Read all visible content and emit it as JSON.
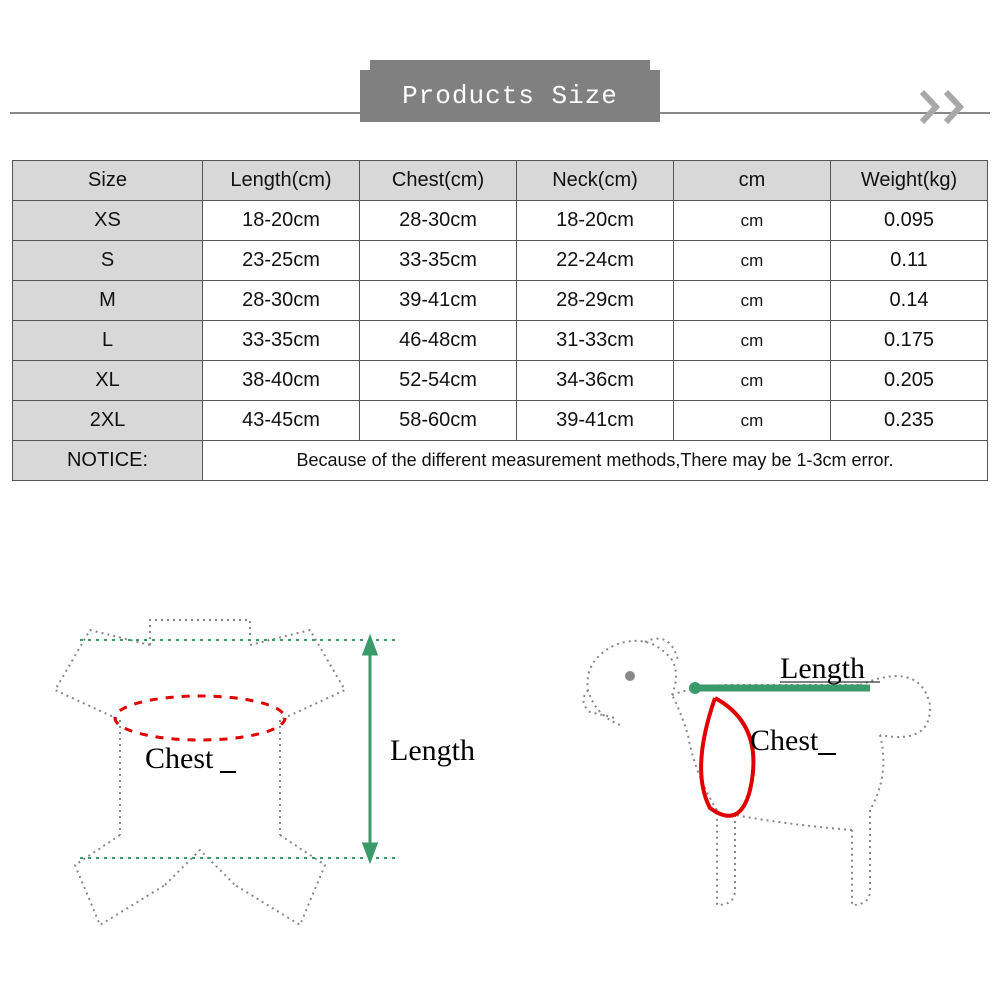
{
  "header": {
    "title": "Products Size",
    "title_color": "#ffffff",
    "tab_bg": "#808080",
    "line_color": "#888888",
    "chevron_color": "#a8a8a8"
  },
  "table": {
    "border_color": "#555555",
    "header_bg": "#d8d8d8",
    "row_bg": "#ffffff",
    "size_col_bg": "#d8d8d8",
    "font_size": 20,
    "columns": [
      "Size",
      "Length(cm)",
      "Chest(cm)",
      "Neck(cm)",
      "cm",
      "Weight(kg)"
    ],
    "rows": [
      {
        "size": "XS",
        "length": "18-20cm",
        "chest": "28-30cm",
        "neck": "18-20cm",
        "cm": "cm",
        "weight": "0.095"
      },
      {
        "size": "S",
        "length": "23-25cm",
        "chest": "33-35cm",
        "neck": "22-24cm",
        "cm": "cm",
        "weight": "0.11"
      },
      {
        "size": "M",
        "length": "28-30cm",
        "chest": "39-41cm",
        "neck": "28-29cm",
        "cm": "cm",
        "weight": "0.14"
      },
      {
        "size": "L",
        "length": "33-35cm",
        "chest": "46-48cm",
        "neck": "31-33cm",
        "cm": "cm",
        "weight": "0.175"
      },
      {
        "size": "XL",
        "length": "38-40cm",
        "chest": "52-54cm",
        "neck": "34-36cm",
        "cm": "cm",
        "weight": "0.205"
      },
      {
        "size": "2XL",
        "length": "43-45cm",
        "chest": "58-60cm",
        "neck": "39-41cm",
        "cm": "cm",
        "weight": "0.235"
      }
    ],
    "notice_label": "NOTICE:",
    "notice_text": "Because of the different measurement methods,There may be 1-3cm error."
  },
  "diagrams": {
    "garment": {
      "chest_label": "Chest",
      "length_label": "Length",
      "outline_color": "#888888",
      "chest_color": "#e00000",
      "arrow_color": "#3a9a6a",
      "guide_color": "#3a9a6a"
    },
    "dog": {
      "chest_label": "Chest",
      "length_label": "Length",
      "outline_color": "#888888",
      "chest_color": "#e00000",
      "length_color": "#3a9a6a"
    }
  }
}
